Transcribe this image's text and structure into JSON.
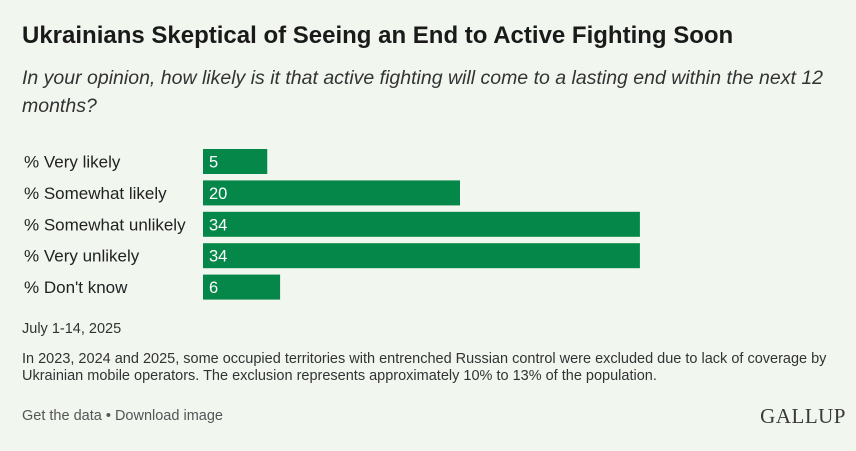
{
  "title": "Ukrainians Skeptical of Seeing an End to Active Fighting Soon",
  "subtitle": "In your opinion, how likely is it that active fighting will come to a lasting end within the next 12 months?",
  "chart_data": {
    "type": "bar",
    "orientation": "horizontal",
    "categories": [
      "% Very likely",
      "% Somewhat likely",
      "% Somewhat unlikely",
      "% Very unlikely",
      "% Don't know"
    ],
    "values": [
      5,
      20,
      34,
      34,
      6
    ],
    "bar_color": "#05874a",
    "label_color": "#ffffff"
  },
  "dates": "July 1-14, 2025",
  "note": "In 2023, 2024 and 2025, some occupied territories with entrenched Russian control were excluded due to lack of coverage by Ukrainian mobile operators. The exclusion represents approximately 10% to 13% of the population.",
  "footer": {
    "get_data": "Get the data",
    "separator": "•",
    "download": "Download image"
  },
  "logo": "GALLUP"
}
